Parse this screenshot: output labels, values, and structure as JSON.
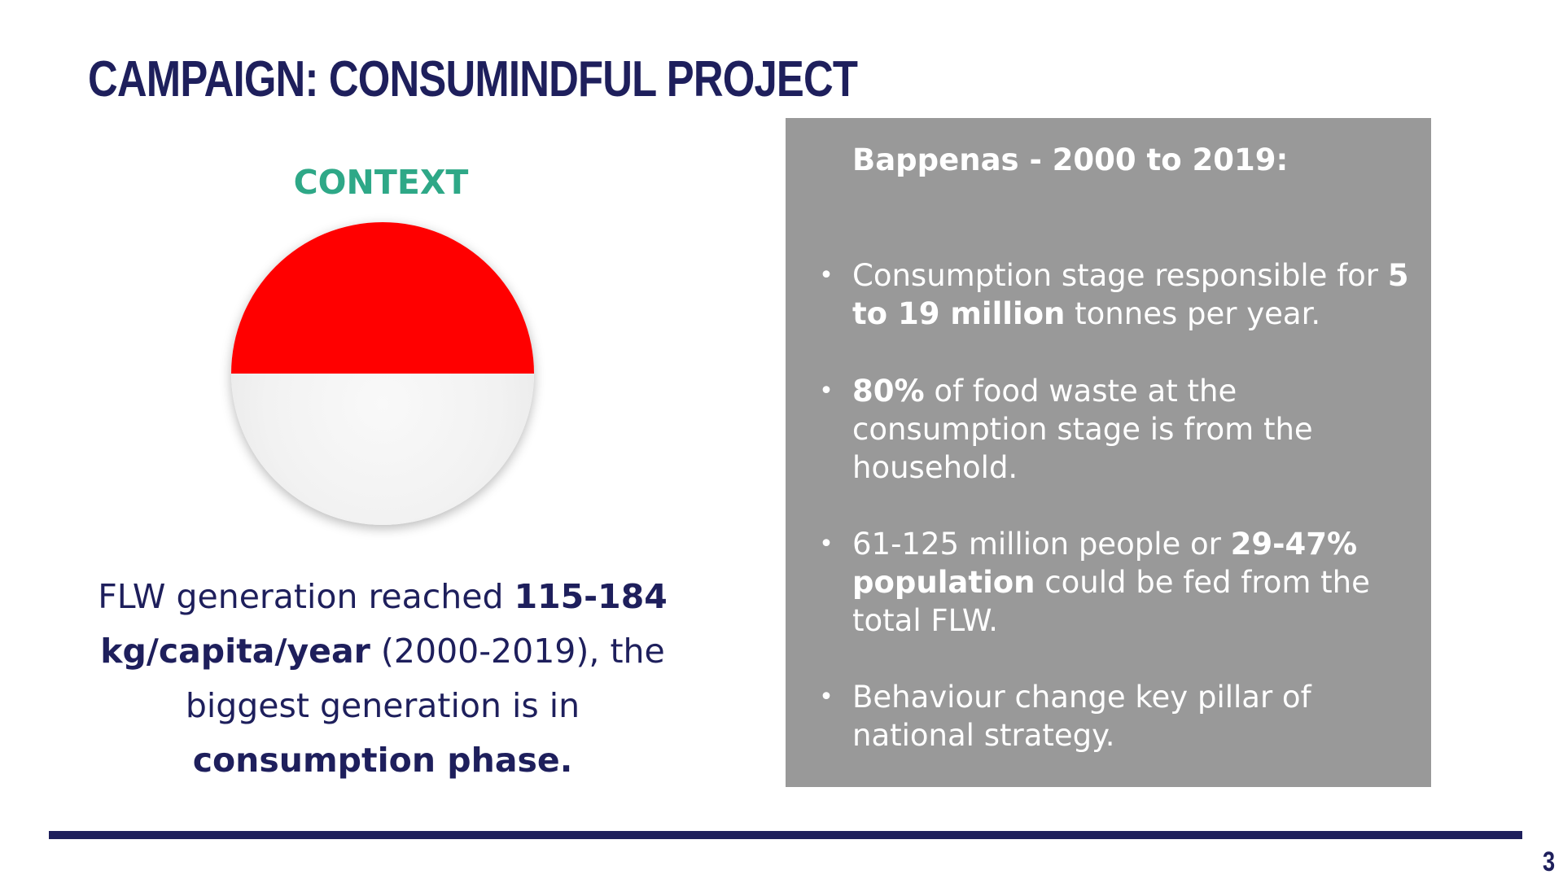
{
  "slide": {
    "title": "Campaign: ConsuMindful Project",
    "page_number": "3"
  },
  "context": {
    "heading": "CONTEXT",
    "flag_colors": {
      "top": "#ff0000",
      "bottom": "#f2f2f2"
    },
    "text": {
      "part1": "FLW generation reached ",
      "bold1": "115-184 kg/capita/year",
      "part2": " (2000-2019), the biggest generation is in ",
      "bold2": "consumption phase."
    }
  },
  "panel": {
    "heading": "Bappenas - 2000 to 2019:",
    "bullets": [
      {
        "text1": "Consumption stage responsible for ",
        "bold1": "5 to 19 million",
        "text2": " tonnes per year."
      },
      {
        "bold1": "80%",
        "text1": " of food waste at the consumption stage is from the household."
      },
      {
        "text1": "61-125 million people or ",
        "bold1": "29-47% population",
        "text2": " could be fed from the total FLW."
      },
      {
        "text1": "Behaviour change key pillar of national strategy."
      }
    ]
  },
  "colors": {
    "navy": "#1e1f5c",
    "green": "#2ea887",
    "panel_gray": "#999999"
  }
}
